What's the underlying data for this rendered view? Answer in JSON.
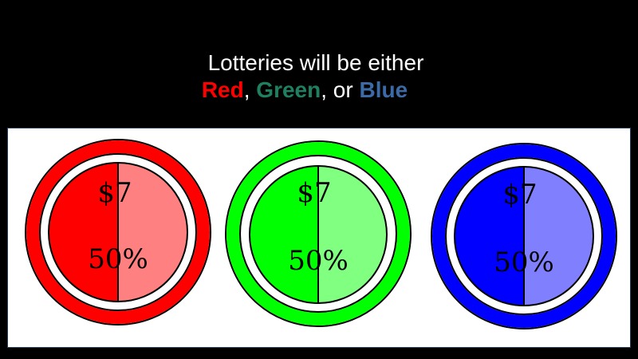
{
  "title": {
    "line1": "Lotteries will be either",
    "red_word": "Red",
    "sep1": ", ",
    "green_word": "Green",
    "sep2": ", or ",
    "blue_word": "Blue"
  },
  "colors": {
    "title_red": "#ff0000",
    "title_green": "#1e8060",
    "title_blue": "#3c6aa6",
    "panel_bg": "#ffffff",
    "page_bg": "#000000"
  },
  "lotteries": [
    {
      "name": "red",
      "amount": "$7",
      "probability": "50%",
      "ring": "#ff0000",
      "dark": "#ff0000",
      "light": "#ff8080"
    },
    {
      "name": "green",
      "amount": "$7",
      "probability": "50%",
      "ring": "#00ff00",
      "dark": "#00ff00",
      "light": "#80ff80"
    },
    {
      "name": "blue",
      "amount": "$7",
      "probability": "50%",
      "ring": "#0000ff",
      "dark": "#0000ff",
      "light": "#8080ff"
    }
  ]
}
